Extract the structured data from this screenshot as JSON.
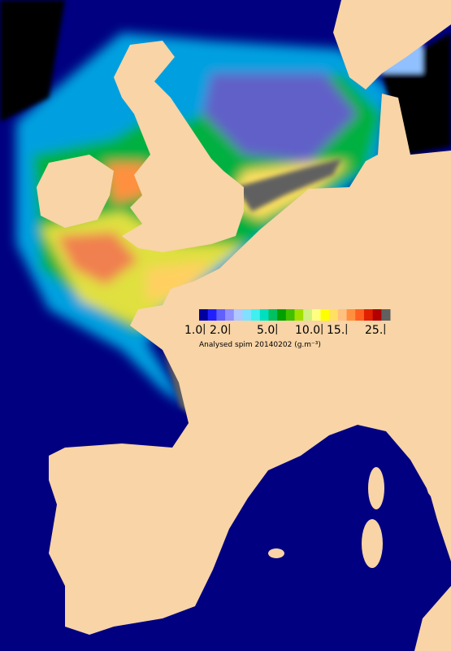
{
  "legend": {
    "ticks": [
      "1.0",
      "2.0",
      "5.0",
      "10.0",
      "15.",
      "25."
    ],
    "caption": "Analysed spim 20140202 (g.m⁻³)"
  }
}
